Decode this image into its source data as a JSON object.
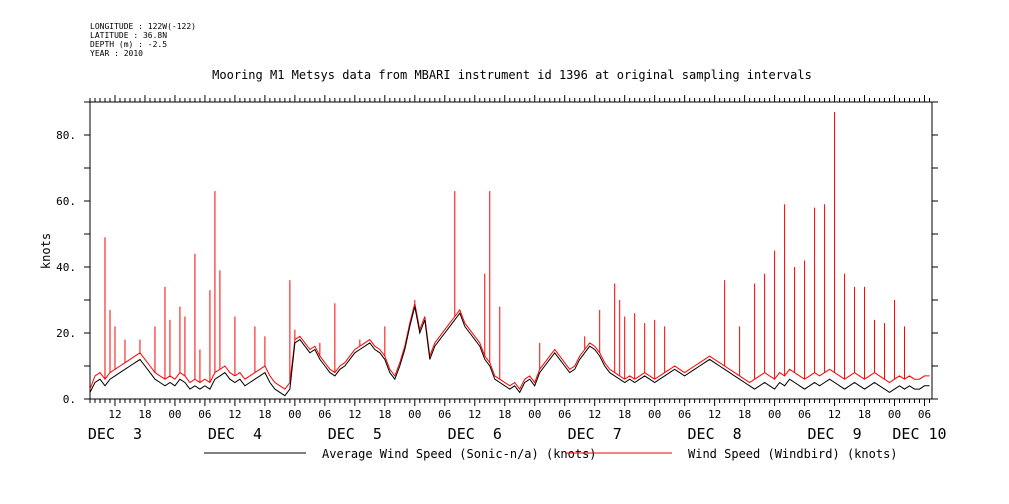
{
  "meta": {
    "longitude": "LONGITUDE : 122W(-122)",
    "latitude": "LATITUDE : 36.8N",
    "depth": "DEPTH (m) : -2.5",
    "year": "YEAR : 2010"
  },
  "chart_data": {
    "type": "line",
    "title": "Mooring M1 Metsys data from MBARI instrument id 1396 at original sampling intervals",
    "ylabel": "knots",
    "xlabel": "",
    "x_unit": "hours since DEC 3 00:00, 2010",
    "xlim": [
      7.0,
      175.5
    ],
    "ylim": [
      0,
      90
    ],
    "yticks": [
      0,
      20,
      40,
      60,
      80
    ],
    "ytick_labels": [
      "0.",
      "20.",
      "40.",
      "60.",
      "80."
    ],
    "xtick_labels": [
      "12",
      "18",
      "00",
      "06",
      "12",
      "18",
      "00",
      "06",
      "12",
      "18",
      "00",
      "06",
      "12",
      "18",
      "00",
      "06",
      "12",
      "18",
      "00",
      "06",
      "12",
      "18",
      "00",
      "06",
      "12",
      "18",
      "00",
      "06"
    ],
    "xtick_hours": [
      12,
      18,
      24,
      30,
      36,
      42,
      48,
      54,
      60,
      66,
      72,
      78,
      84,
      90,
      96,
      102,
      108,
      114,
      120,
      126,
      132,
      138,
      144,
      150,
      156,
      162,
      168,
      174
    ],
    "day_labels": [
      {
        "text": "DEC  3",
        "hour": 12
      },
      {
        "text": "DEC  4",
        "hour": 36
      },
      {
        "text": "DEC  5",
        "hour": 60
      },
      {
        "text": "DEC  6",
        "hour": 84
      },
      {
        "text": "DEC  7",
        "hour": 108
      },
      {
        "text": "DEC  8",
        "hour": 132
      },
      {
        "text": "DEC  9",
        "hour": 156
      },
      {
        "text": "DEC 10",
        "hour": 173
      }
    ],
    "grid": false,
    "legend_position": "bottom",
    "series": [
      {
        "name": "Average Wind Speed (Sonic-n/a) (knots)",
        "color": "#000000",
        "x": [
          7,
          8,
          9,
          10,
          11,
          12,
          13,
          14,
          15,
          16,
          17,
          18,
          19,
          20,
          21,
          22,
          23,
          24,
          25,
          26,
          27,
          28,
          29,
          30,
          31,
          32,
          33,
          34,
          35,
          36,
          37,
          38,
          39,
          40,
          41,
          42,
          43,
          44,
          45,
          46,
          47,
          48,
          49,
          50,
          51,
          52,
          53,
          54,
          55,
          56,
          57,
          58,
          59,
          60,
          61,
          62,
          63,
          64,
          65,
          66,
          67,
          68,
          69,
          70,
          71,
          72,
          73,
          74,
          75,
          76,
          77,
          78,
          79,
          80,
          81,
          82,
          83,
          84,
          85,
          86,
          87,
          88,
          89,
          90,
          91,
          92,
          93,
          94,
          95,
          96,
          97,
          98,
          99,
          100,
          101,
          102,
          103,
          104,
          105,
          106,
          107,
          108,
          109,
          110,
          111,
          112,
          113,
          114,
          115,
          116,
          117,
          118,
          119,
          120,
          121,
          122,
          123,
          124,
          125,
          126,
          127,
          128,
          129,
          130,
          131,
          132,
          133,
          134,
          135,
          136,
          137,
          138,
          139,
          140,
          141,
          142,
          143,
          144,
          145,
          146,
          147,
          148,
          149,
          150,
          151,
          152,
          153,
          154,
          155,
          156,
          157,
          158,
          159,
          160,
          161,
          162,
          163,
          164,
          165,
          166,
          167,
          168,
          169,
          170,
          171,
          172,
          173,
          174,
          175
        ],
        "y": [
          2,
          5,
          6,
          4,
          6,
          7,
          8,
          9,
          10,
          11,
          12,
          10,
          8,
          6,
          5,
          4,
          5,
          4,
          6,
          5,
          3,
          4,
          3,
          4,
          3,
          6,
          7,
          8,
          6,
          5,
          6,
          4,
          5,
          6,
          7,
          8,
          5,
          3,
          2,
          1,
          3,
          17,
          18,
          16,
          14,
          15,
          12,
          10,
          8,
          7,
          9,
          10,
          12,
          14,
          15,
          16,
          17,
          15,
          14,
          12,
          8,
          6,
          10,
          15,
          22,
          28,
          20,
          24,
          12,
          16,
          18,
          20,
          22,
          24,
          26,
          22,
          20,
          18,
          16,
          12,
          10,
          6,
          5,
          4,
          3,
          4,
          2,
          5,
          6,
          4,
          8,
          10,
          12,
          14,
          12,
          10,
          8,
          9,
          12,
          14,
          16,
          15,
          13,
          10,
          8,
          7,
          6,
          5,
          6,
          5,
          6,
          7,
          6,
          5,
          6,
          7,
          8,
          9,
          8,
          7,
          8,
          9,
          10,
          11,
          12,
          11,
          10,
          9,
          8,
          7,
          6,
          5,
          4,
          3,
          4,
          5,
          4,
          3,
          5,
          4,
          6,
          5,
          4,
          3,
          4,
          5,
          4,
          5,
          6,
          5,
          4,
          3,
          4,
          5,
          4,
          3,
          4,
          5,
          4,
          3,
          2,
          3,
          4,
          3,
          4,
          3,
          3,
          4,
          4
        ]
      },
      {
        "name": "Wind Speed (Windbird) (knots)",
        "color": "#ff0000",
        "x": [
          7,
          8,
          9,
          10,
          11,
          12,
          13,
          14,
          15,
          16,
          17,
          18,
          19,
          20,
          21,
          22,
          23,
          24,
          25,
          26,
          27,
          28,
          29,
          30,
          31,
          32,
          33,
          34,
          35,
          36,
          37,
          38,
          39,
          40,
          41,
          42,
          43,
          44,
          45,
          46,
          47,
          48,
          49,
          50,
          51,
          52,
          53,
          54,
          55,
          56,
          57,
          58,
          59,
          60,
          61,
          62,
          63,
          64,
          65,
          66,
          67,
          68,
          69,
          70,
          71,
          72,
          73,
          74,
          75,
          76,
          77,
          78,
          79,
          80,
          81,
          82,
          83,
          84,
          85,
          86,
          87,
          88,
          89,
          90,
          91,
          92,
          93,
          94,
          95,
          96,
          97,
          98,
          99,
          100,
          101,
          102,
          103,
          104,
          105,
          106,
          107,
          108,
          109,
          110,
          111,
          112,
          113,
          114,
          115,
          116,
          117,
          118,
          119,
          120,
          121,
          122,
          123,
          124,
          125,
          126,
          127,
          128,
          129,
          130,
          131,
          132,
          133,
          134,
          135,
          136,
          137,
          138,
          139,
          140,
          141,
          142,
          143,
          144,
          145,
          146,
          147,
          148,
          149,
          150,
          151,
          152,
          153,
          154,
          155,
          156,
          157,
          158,
          159,
          160,
          161,
          162,
          163,
          164,
          165,
          166,
          167,
          168,
          169,
          170,
          171,
          172,
          173,
          174,
          175
        ],
        "y": [
          3,
          7,
          8,
          6,
          8,
          9,
          10,
          11,
          12,
          13,
          14,
          12,
          10,
          8,
          7,
          6,
          7,
          6,
          8,
          7,
          5,
          6,
          5,
          6,
          5,
          8,
          9,
          10,
          8,
          7,
          8,
          6,
          7,
          8,
          9,
          10,
          7,
          5,
          4,
          3,
          5,
          18,
          19,
          17,
          15,
          16,
          13,
          11,
          9,
          8,
          10,
          11,
          13,
          15,
          16,
          17,
          18,
          16,
          15,
          13,
          9,
          7,
          11,
          16,
          23,
          29,
          21,
          25,
          13,
          17,
          19,
          21,
          23,
          25,
          27,
          23,
          21,
          19,
          17,
          13,
          11,
          7,
          6,
          5,
          4,
          5,
          3,
          6,
          7,
          5,
          9,
          11,
          13,
          15,
          13,
          11,
          9,
          10,
          13,
          15,
          17,
          16,
          14,
          11,
          9,
          8,
          7,
          6,
          7,
          6,
          7,
          8,
          7,
          6,
          7,
          8,
          9,
          10,
          9,
          8,
          9,
          10,
          11,
          12,
          13,
          12,
          11,
          10,
          9,
          8,
          7,
          6,
          5,
          6,
          7,
          8,
          7,
          6,
          8,
          7,
          9,
          8,
          7,
          6,
          7,
          8,
          7,
          8,
          9,
          8,
          7,
          6,
          7,
          8,
          7,
          6,
          7,
          8,
          7,
          6,
          5,
          6,
          7,
          6,
          7,
          6,
          6,
          7,
          7
        ],
        "spikes": [
          [
            10,
            49
          ],
          [
            11,
            27
          ],
          [
            12,
            22
          ],
          [
            14,
            18
          ],
          [
            17,
            18
          ],
          [
            20,
            22
          ],
          [
            22,
            34
          ],
          [
            23,
            24
          ],
          [
            25,
            28
          ],
          [
            26,
            25
          ],
          [
            28,
            44
          ],
          [
            29,
            15
          ],
          [
            31,
            33
          ],
          [
            32,
            63
          ],
          [
            33,
            39
          ],
          [
            36,
            25
          ],
          [
            40,
            22
          ],
          [
            42,
            19
          ],
          [
            47,
            36
          ],
          [
            48,
            21
          ],
          [
            53,
            17
          ],
          [
            56,
            29
          ],
          [
            61,
            18
          ],
          [
            66,
            22
          ],
          [
            72,
            30
          ],
          [
            80,
            63
          ],
          [
            86,
            38
          ],
          [
            87,
            63
          ],
          [
            89,
            28
          ],
          [
            97,
            17
          ],
          [
            106,
            19
          ],
          [
            109,
            27
          ],
          [
            112,
            35
          ],
          [
            113,
            30
          ],
          [
            114,
            25
          ],
          [
            116,
            26
          ],
          [
            118,
            23
          ],
          [
            120,
            24
          ],
          [
            122,
            22
          ],
          [
            134,
            36
          ],
          [
            137,
            22
          ],
          [
            140,
            35
          ],
          [
            142,
            38
          ],
          [
            144,
            45
          ],
          [
            146,
            59
          ],
          [
            148,
            40
          ],
          [
            150,
            42
          ],
          [
            152,
            58
          ],
          [
            154,
            59
          ],
          [
            156,
            87
          ],
          [
            158,
            38
          ],
          [
            160,
            34
          ],
          [
            162,
            34
          ],
          [
            164,
            24
          ],
          [
            166,
            23
          ],
          [
            168,
            30
          ],
          [
            170,
            22
          ]
        ]
      }
    ]
  }
}
